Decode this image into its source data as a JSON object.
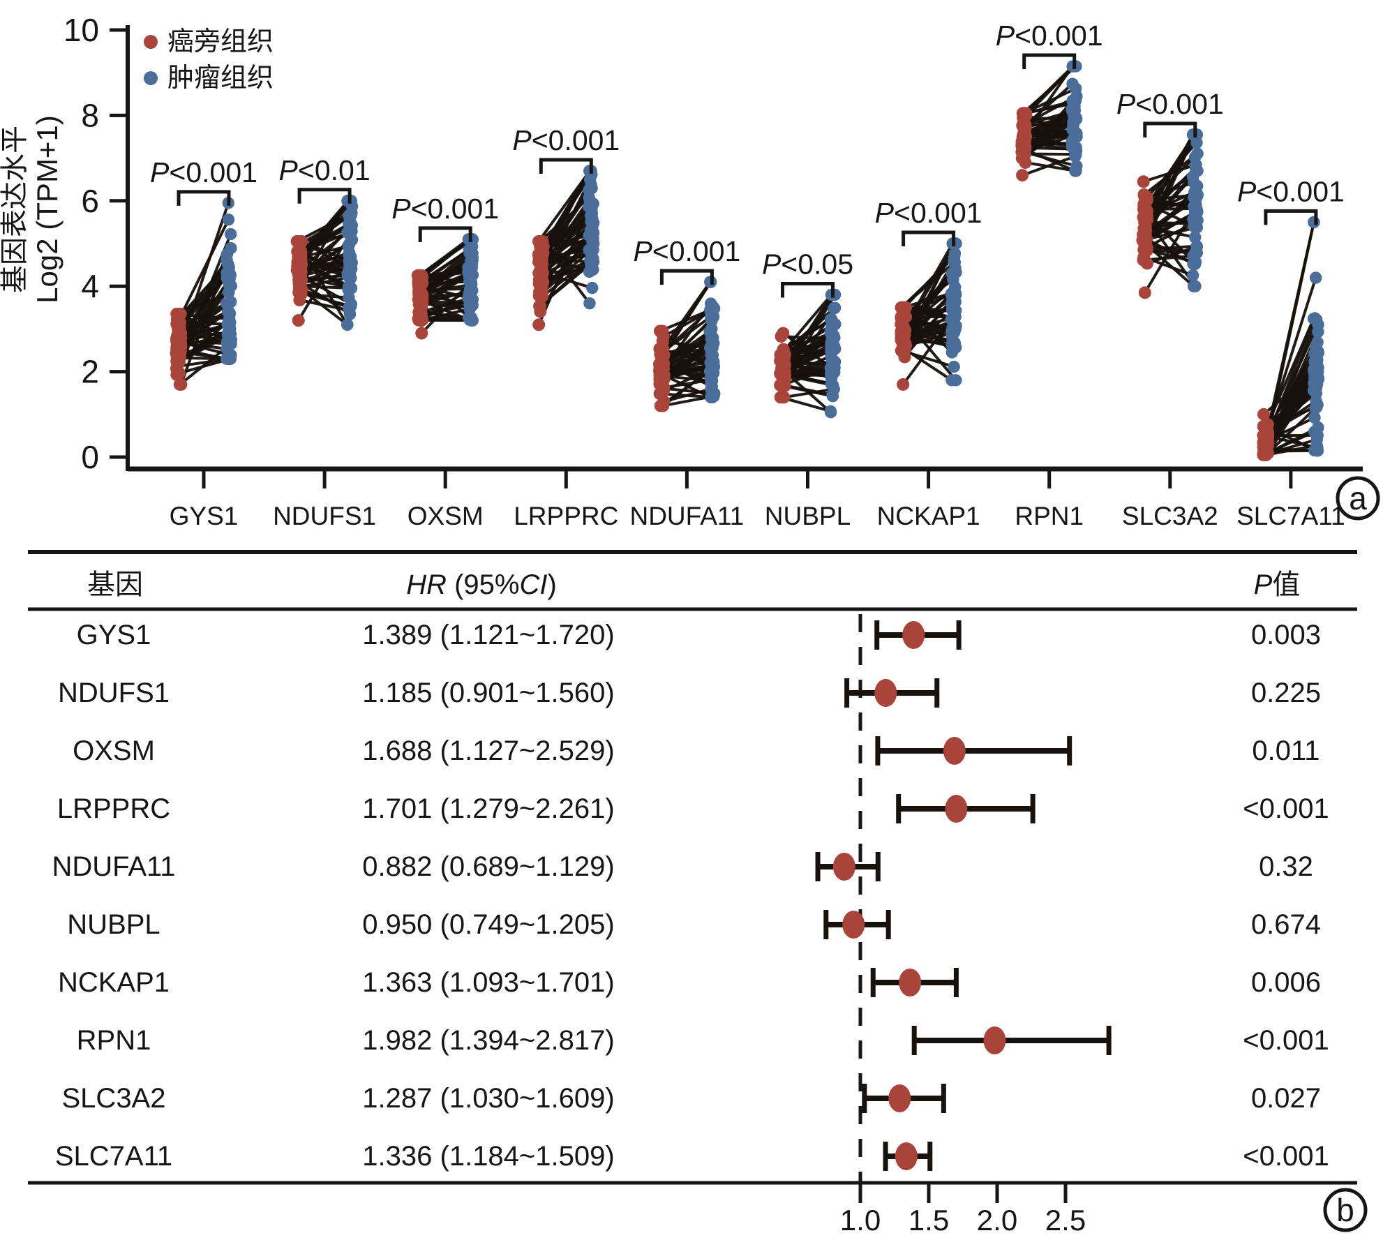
{
  "colors": {
    "normal": "#A8443A",
    "tumor": "#4A6D99",
    "pair_line": "#17120D",
    "ink": "#161616"
  },
  "panel_a_badge": "a",
  "panel_b_badge": "b",
  "chart_data": [
    {
      "type": "paired-scatter",
      "title": "",
      "ylabel_line1": "基因表达水平",
      "ylabel_line2": "Log2 (TPM+1)",
      "ylim": [
        0,
        10
      ],
      "yticks": [
        0,
        2,
        4,
        6,
        8,
        10
      ],
      "grid": false,
      "legend_position": "top-left",
      "legend": [
        {
          "label": "癌旁组织",
          "color": "#A8443A"
        },
        {
          "label": "肿瘤组织",
          "color": "#4A6D99"
        }
      ],
      "n_pairs_per_gene": 50,
      "genes": [
        {
          "name": "GYS1",
          "p_label": "P<0.001",
          "normal": {
            "min": 1.7,
            "mode": 2.65,
            "max": 3.35
          },
          "tumor": {
            "min": 2.3,
            "mode": 3.35,
            "max": 5.95
          }
        },
        {
          "name": "NDUFS1",
          "p_label": "P<0.01",
          "normal": {
            "min": 3.2,
            "mode": 4.45,
            "max": 5.05
          },
          "tumor": {
            "min": 3.1,
            "mode": 4.65,
            "max": 6.0
          }
        },
        {
          "name": "OXSM",
          "p_label": "P<0.001",
          "normal": {
            "min": 2.9,
            "mode": 3.75,
            "max": 4.25
          },
          "tumor": {
            "min": 3.2,
            "mode": 4.0,
            "max": 5.1
          }
        },
        {
          "name": "LRPPRC",
          "p_label": "P<0.001",
          "normal": {
            "min": 3.1,
            "mode": 4.4,
            "max": 5.05
          },
          "tumor": {
            "min": 3.6,
            "mode": 5.3,
            "max": 6.7
          }
        },
        {
          "name": "NDUFA11",
          "p_label": "P<0.001",
          "normal": {
            "min": 1.2,
            "mode": 2.05,
            "max": 2.95
          },
          "tumor": {
            "min": 1.4,
            "mode": 2.35,
            "max": 4.1
          }
        },
        {
          "name": "NUBPL",
          "p_label": "P<0.05",
          "normal": {
            "min": 1.4,
            "mode": 2.1,
            "max": 2.9
          },
          "tumor": {
            "min": 1.05,
            "mode": 2.3,
            "max": 3.8
          }
        },
        {
          "name": "NCKAP1",
          "p_label": "P<0.001",
          "normal": {
            "min": 1.7,
            "mode": 2.95,
            "max": 3.5
          },
          "tumor": {
            "min": 1.8,
            "mode": 3.35,
            "max": 5.0
          }
        },
        {
          "name": "RPN1",
          "p_label": "P<0.001",
          "normal": {
            "min": 6.6,
            "mode": 7.5,
            "max": 8.05
          },
          "tumor": {
            "min": 6.7,
            "mode": 7.95,
            "max": 9.15
          }
        },
        {
          "name": "SLC3A2",
          "p_label": "P<0.001",
          "normal": {
            "min": 3.85,
            "mode": 5.3,
            "max": 6.45
          },
          "tumor": {
            "min": 4.0,
            "mode": 5.75,
            "max": 7.55
          }
        },
        {
          "name": "SLC7A11",
          "p_label": "P<0.001",
          "normal": {
            "min": 0.05,
            "mode": 0.35,
            "max": 1.0
          },
          "tumor": {
            "min": 0.15,
            "mode": 1.7,
            "max": 5.5
          }
        }
      ]
    },
    {
      "type": "forest",
      "columns": {
        "gene": "基因",
        "hr": "HR (95%CI)",
        "p": "P值"
      },
      "axis": {
        "ticks": [
          1.0,
          1.5,
          2.0,
          2.5
        ],
        "reference": 1.0
      },
      "rows": [
        {
          "gene": "GYS1",
          "hr": 1.389,
          "lo": 1.121,
          "hi": 1.72,
          "hr_text": "1.389 (1.121~1.720)",
          "p": "0.003"
        },
        {
          "gene": "NDUFS1",
          "hr": 1.185,
          "lo": 0.901,
          "hi": 1.56,
          "hr_text": "1.185 (0.901~1.560)",
          "p": "0.225"
        },
        {
          "gene": "OXSM",
          "hr": 1.688,
          "lo": 1.127,
          "hi": 2.529,
          "hr_text": "1.688 (1.127~2.529)",
          "p": "0.011"
        },
        {
          "gene": "LRPPRC",
          "hr": 1.701,
          "lo": 1.279,
          "hi": 2.261,
          "hr_text": "1.701 (1.279~2.261)",
          "p": "<0.001"
        },
        {
          "gene": "NDUFA11",
          "hr": 0.882,
          "lo": 0.689,
          "hi": 1.129,
          "hr_text": "0.882 (0.689~1.129)",
          "p": "0.32"
        },
        {
          "gene": "NUBPL",
          "hr": 0.95,
          "lo": 0.749,
          "hi": 1.205,
          "hr_text": "0.950 (0.749~1.205)",
          "p": "0.674"
        },
        {
          "gene": "NCKAP1",
          "hr": 1.363,
          "lo": 1.093,
          "hi": 1.701,
          "hr_text": "1.363 (1.093~1.701)",
          "p": "0.006"
        },
        {
          "gene": "RPN1",
          "hr": 1.982,
          "lo": 1.394,
          "hi": 2.817,
          "hr_text": "1.982 (1.394~2.817)",
          "p": "<0.001"
        },
        {
          "gene": "SLC3A2",
          "hr": 1.287,
          "lo": 1.03,
          "hi": 1.609,
          "hr_text": "1.287 (1.030~1.609)",
          "p": "0.027"
        },
        {
          "gene": "SLC7A11",
          "hr": 1.336,
          "lo": 1.184,
          "hi": 1.509,
          "hr_text": "1.336 (1.184~1.509)",
          "p": "<0.001"
        }
      ]
    }
  ]
}
